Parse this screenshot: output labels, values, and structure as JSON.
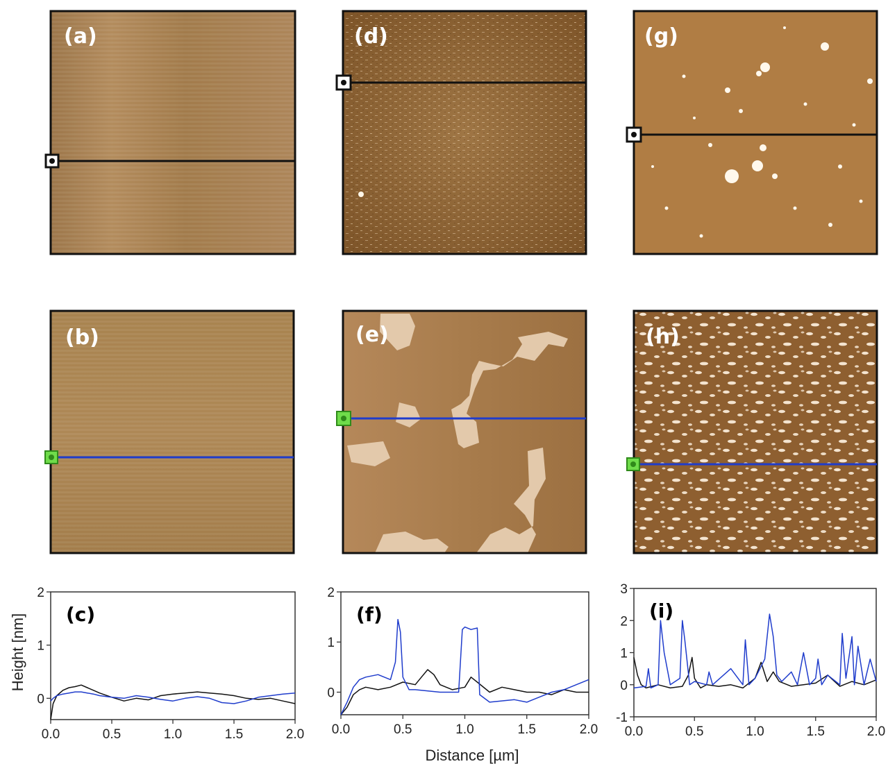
{
  "panels": {
    "a": {
      "label": "(a)",
      "marker": "black"
    },
    "b": {
      "label": "(b)",
      "marker": "green"
    },
    "d": {
      "label": "(d)",
      "marker": "black"
    },
    "e": {
      "label": "(e)",
      "marker": "green"
    },
    "g": {
      "label": "(g)",
      "marker": "black"
    },
    "h": {
      "label": "(h)",
      "marker": "green"
    }
  },
  "colors": {
    "afm_base": "#a57e4c",
    "afm_dark": "#7a5527",
    "afm_light": "#e6d2b6",
    "afm_spot": "#fff6e8",
    "profile_before": "#111111",
    "profile_after": "#1f3ccc",
    "green_marker": "#6fdc4a"
  },
  "axes": {
    "ylabel": "Height [nm]",
    "xlabel": "Distance [µm]"
  },
  "chart_data": [
    {
      "type": "line",
      "panel": "(c)",
      "xlim": [
        0,
        2.0
      ],
      "ylim": [
        -0.4,
        2
      ],
      "x_ticks": [
        "0.0",
        "0.5",
        "1.0",
        "1.5",
        "2.0"
      ],
      "y_ticks": [
        "2",
        "1",
        "0"
      ],
      "y_tick_values": [
        2,
        1,
        0
      ],
      "series": [
        {
          "color": "#111111",
          "x": [
            0.0,
            0.02,
            0.05,
            0.1,
            0.15,
            0.2,
            0.25,
            0.3,
            0.35,
            0.4,
            0.5,
            0.6,
            0.7,
            0.8,
            0.9,
            1.0,
            1.1,
            1.2,
            1.3,
            1.4,
            1.5,
            1.6,
            1.7,
            1.8,
            1.9,
            2.0
          ],
          "y": [
            -0.4,
            -0.1,
            0.05,
            0.15,
            0.2,
            0.22,
            0.25,
            0.2,
            0.15,
            0.1,
            0.02,
            -0.05,
            0.0,
            -0.03,
            0.05,
            0.08,
            0.1,
            0.12,
            0.1,
            0.08,
            0.05,
            0.0,
            -0.02,
            0.0,
            -0.05,
            -0.1
          ]
        },
        {
          "color": "#1f3ccc",
          "x": [
            0.0,
            0.02,
            0.05,
            0.1,
            0.15,
            0.2,
            0.25,
            0.3,
            0.35,
            0.4,
            0.5,
            0.6,
            0.7,
            0.8,
            0.9,
            1.0,
            1.1,
            1.2,
            1.3,
            1.4,
            1.5,
            1.6,
            1.7,
            1.8,
            1.9,
            2.0
          ],
          "y": [
            -0.05,
            0.0,
            0.05,
            0.08,
            0.1,
            0.12,
            0.12,
            0.1,
            0.08,
            0.05,
            0.02,
            0.0,
            0.05,
            0.02,
            -0.02,
            -0.05,
            0.0,
            0.03,
            0.0,
            -0.08,
            -0.1,
            -0.05,
            0.02,
            0.05,
            0.08,
            0.1
          ]
        }
      ]
    },
    {
      "type": "line",
      "panel": "(f)",
      "xlim": [
        0,
        2.0
      ],
      "ylim": [
        -0.45,
        2
      ],
      "x_ticks": [
        "0.0",
        "0.5",
        "1.0",
        "1.5",
        "2.0"
      ],
      "y_ticks": [
        "2",
        "1",
        "0"
      ],
      "y_tick_values": [
        2,
        1,
        0
      ],
      "series": [
        {
          "color": "#111111",
          "x": [
            0.0,
            0.05,
            0.1,
            0.15,
            0.2,
            0.3,
            0.4,
            0.5,
            0.6,
            0.65,
            0.7,
            0.75,
            0.8,
            0.9,
            1.0,
            1.05,
            1.1,
            1.2,
            1.3,
            1.4,
            1.5,
            1.6,
            1.7,
            1.8,
            1.9,
            2.0
          ],
          "y": [
            -0.45,
            -0.3,
            -0.05,
            0.05,
            0.1,
            0.05,
            0.1,
            0.2,
            0.15,
            0.3,
            0.45,
            0.35,
            0.15,
            0.05,
            0.1,
            0.3,
            0.2,
            0.0,
            0.1,
            0.05,
            0.0,
            0.0,
            -0.05,
            0.05,
            0.0,
            0.0
          ]
        },
        {
          "color": "#1f3ccc",
          "x": [
            0.0,
            0.05,
            0.1,
            0.15,
            0.2,
            0.3,
            0.4,
            0.44,
            0.46,
            0.48,
            0.5,
            0.55,
            0.6,
            0.8,
            0.95,
            0.98,
            1.0,
            1.05,
            1.1,
            1.12,
            1.2,
            1.4,
            1.5,
            1.6,
            1.7,
            1.8,
            1.9,
            2.0
          ],
          "y": [
            -0.45,
            -0.2,
            0.1,
            0.25,
            0.3,
            0.35,
            0.25,
            0.6,
            1.45,
            1.2,
            0.3,
            0.05,
            0.05,
            0.0,
            0.0,
            1.25,
            1.3,
            1.25,
            1.28,
            -0.05,
            -0.2,
            -0.15,
            -0.2,
            -0.1,
            0.0,
            0.05,
            0.15,
            0.25
          ]
        }
      ]
    },
    {
      "type": "line",
      "panel": "(i)",
      "xlim": [
        0,
        2.0
      ],
      "ylim": [
        -1,
        3
      ],
      "x_ticks": [
        "0.0",
        "0.5",
        "1.0",
        "1.5",
        "2.0"
      ],
      "y_ticks": [
        "3",
        "2",
        "1",
        "0",
        "-1"
      ],
      "y_tick_values": [
        3,
        2,
        1,
        0,
        -1
      ],
      "series": [
        {
          "color": "#111111",
          "x": [
            0.0,
            0.03,
            0.06,
            0.1,
            0.2,
            0.3,
            0.4,
            0.45,
            0.48,
            0.5,
            0.55,
            0.6,
            0.7,
            0.8,
            0.9,
            1.0,
            1.05,
            1.1,
            1.15,
            1.2,
            1.3,
            1.4,
            1.5,
            1.6,
            1.7,
            1.8,
            1.9,
            2.0
          ],
          "y": [
            0.85,
            0.3,
            0.0,
            -0.1,
            0.0,
            -0.1,
            -0.05,
            0.3,
            0.85,
            0.2,
            -0.1,
            0.0,
            -0.05,
            0.0,
            -0.1,
            0.2,
            0.7,
            0.1,
            0.4,
            0.1,
            -0.05,
            0.0,
            0.05,
            0.3,
            -0.05,
            0.1,
            0.0,
            0.15
          ]
        },
        {
          "color": "#1f3ccc",
          "x": [
            0.0,
            0.1,
            0.12,
            0.14,
            0.2,
            0.22,
            0.25,
            0.3,
            0.38,
            0.4,
            0.42,
            0.46,
            0.5,
            0.6,
            0.62,
            0.65,
            0.8,
            0.9,
            0.92,
            0.95,
            1.0,
            1.08,
            1.12,
            1.15,
            1.18,
            1.22,
            1.3,
            1.35,
            1.4,
            1.45,
            1.5,
            1.52,
            1.55,
            1.6,
            1.7,
            1.72,
            1.75,
            1.8,
            1.82,
            1.85,
            1.9,
            1.95,
            2.0
          ],
          "y": [
            -0.1,
            -0.05,
            0.5,
            -0.1,
            0.0,
            2.0,
            1.0,
            0.0,
            0.2,
            2.0,
            1.4,
            0.0,
            0.1,
            0.0,
            0.4,
            0.0,
            0.5,
            0.0,
            1.4,
            0.0,
            0.2,
            0.8,
            2.2,
            1.5,
            0.3,
            0.1,
            0.4,
            0.0,
            1.0,
            0.0,
            0.2,
            0.8,
            0.0,
            0.3,
            0.0,
            1.6,
            0.2,
            1.5,
            0.0,
            1.2,
            0.0,
            0.8,
            0.1
          ]
        }
      ]
    }
  ]
}
